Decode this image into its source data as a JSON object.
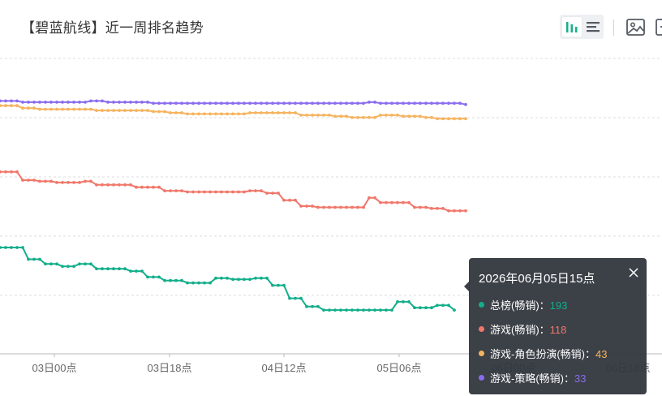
{
  "title": "【碧蓝航线】近一周排名趋势",
  "toolbar": {
    "bar_view_icon": "bar-chart-icon",
    "list_view_icon": "list-icon",
    "save_image_icon": "image-icon",
    "more_icon": "more-icon",
    "active_color": "#15b08a"
  },
  "tooltip": {
    "time": "2026年06月05日15点",
    "rows": [
      {
        "name": "总榜(畅销)",
        "label": "总榜(畅销)：",
        "value": "193",
        "color": "#13ae8b"
      },
      {
        "name": "游戏(畅销)",
        "label": "游戏(畅销)：",
        "value": "118",
        "color": "#f0776a"
      },
      {
        "name": "游戏-角色扮演(畅销)",
        "label": "游戏-角色扮演(畅销)：",
        "value": "43",
        "color": "#f6b35f"
      },
      {
        "name": "游戏-策略(畅销)",
        "label": "游戏-策略(畅销)：",
        "value": "33",
        "color": "#8a6cf0"
      }
    ]
  },
  "chart_data": {
    "type": "line",
    "x_ticks": [
      "03日00点",
      "03日18点",
      "04日12点",
      "05日06点",
      "06日00点",
      "06日18点"
    ],
    "y_inverted": true,
    "ylim": [
      0,
      250
    ],
    "grid": "horizontal dashed",
    "legend": "none",
    "hover_x": "05日15点",
    "series": [
      {
        "name": "总榜(畅销)",
        "color": "#13ae8b",
        "values": [
          160,
          160,
          160,
          160,
          160,
          170,
          170,
          170,
          174,
          174,
          174,
          176,
          176,
          176,
          174,
          174,
          174,
          178,
          178,
          178,
          178,
          178,
          178,
          180,
          180,
          180,
          185,
          185,
          185,
          188,
          188,
          188,
          188,
          190,
          190,
          190,
          190,
          190,
          186,
          186,
          186,
          187,
          187,
          187,
          187,
          186,
          186,
          186,
          192,
          192,
          192,
          203,
          203,
          203,
          210,
          210,
          210,
          213,
          213,
          213,
          213,
          213,
          213,
          213,
          213,
          213,
          213,
          213,
          213,
          213,
          206,
          206,
          206,
          211,
          211,
          211,
          211,
          209,
          209,
          209,
          213,
          213,
          213
        ]
      },
      {
        "name": "游戏(畅销)",
        "color": "#f0776a",
        "values": [
          96,
          96,
          96,
          96,
          103,
          103,
          103,
          104,
          104,
          104,
          105,
          105,
          105,
          105,
          105,
          104,
          104,
          107,
          107,
          107,
          107,
          107,
          107,
          107,
          109,
          109,
          109,
          109,
          109,
          112,
          112,
          112,
          112,
          113,
          113,
          113,
          113,
          113,
          113,
          113,
          113,
          113,
          113,
          113,
          112,
          112,
          112,
          114,
          114,
          114,
          120,
          120,
          120,
          125,
          125,
          125,
          126,
          126,
          126,
          126,
          126,
          126,
          126,
          126,
          126,
          118,
          118,
          122,
          122,
          122,
          122,
          122,
          122,
          126,
          126,
          126,
          127,
          127,
          127,
          129,
          129,
          129,
          129
        ]
      },
      {
        "name": "游戏-角色扮演(畅销)",
        "color": "#f6b35f",
        "values": [
          40,
          40,
          40,
          40,
          42,
          42,
          42,
          43,
          43,
          43,
          43,
          43,
          43,
          43,
          43,
          43,
          43,
          44,
          44,
          44,
          44,
          44,
          44,
          44,
          44,
          44,
          44,
          45,
          45,
          45,
          46,
          46,
          46,
          47,
          47,
          47,
          47,
          47,
          47,
          47,
          47,
          47,
          47,
          47,
          46,
          46,
          46,
          46,
          46,
          46,
          46,
          46,
          46,
          48,
          48,
          48,
          48,
          48,
          48,
          49,
          49,
          49,
          50,
          50,
          50,
          50,
          50,
          48,
          48,
          48,
          48,
          49,
          49,
          49,
          49,
          50,
          50,
          51,
          51,
          51,
          51,
          51,
          51
        ]
      },
      {
        "name": "游戏-策略(畅销)",
        "color": "#8a6cf0",
        "values": [
          36,
          36,
          36,
          36,
          37,
          37,
          37,
          37,
          37,
          37,
          37,
          37,
          37,
          37,
          37,
          37,
          36,
          36,
          36,
          37,
          37,
          37,
          37,
          37,
          37,
          37,
          37,
          38,
          38,
          38,
          38,
          38,
          38,
          38,
          38,
          38,
          38,
          38,
          38,
          38,
          38,
          38,
          38,
          38,
          38,
          38,
          38,
          38,
          38,
          38,
          38,
          38,
          38,
          38,
          38,
          38,
          38,
          38,
          38,
          38,
          38,
          38,
          38,
          38,
          38,
          37,
          37,
          38,
          38,
          38,
          38,
          38,
          38,
          38,
          38,
          38,
          38,
          38,
          38,
          38,
          38,
          38,
          39
        ]
      }
    ]
  }
}
